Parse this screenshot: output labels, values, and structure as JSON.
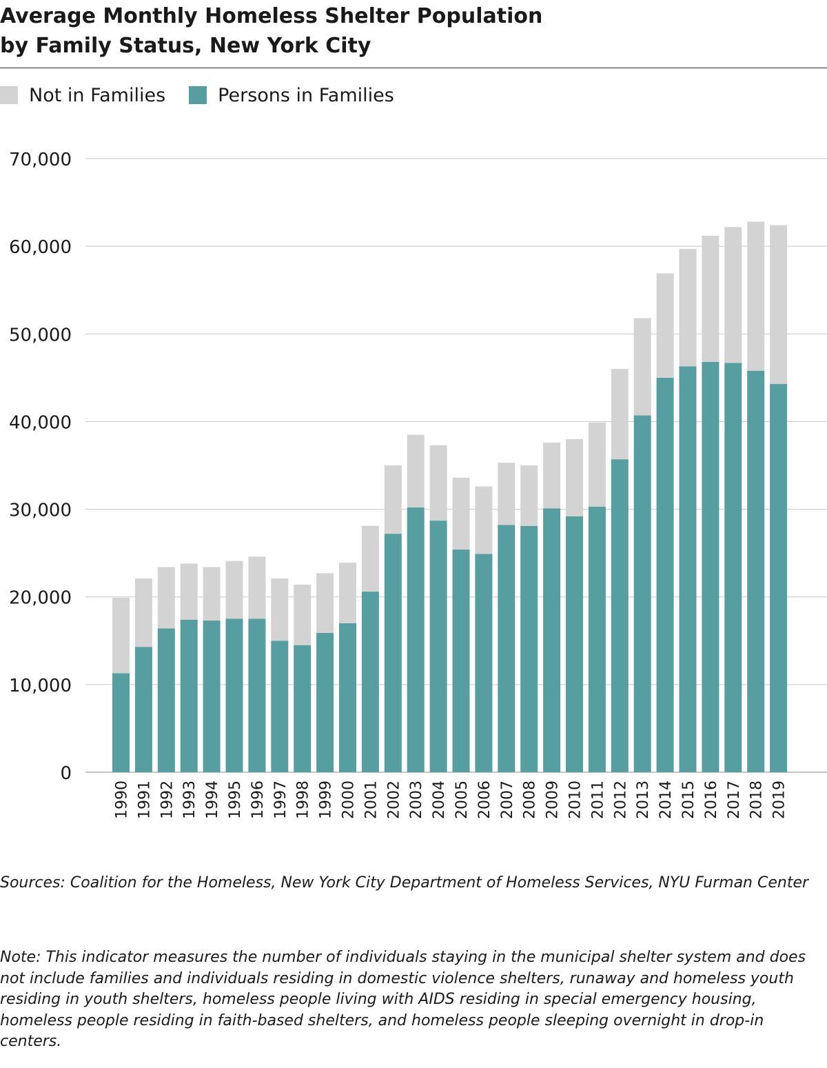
{
  "title_line1": "Average Monthly Homeless Shelter Population",
  "title_line2": "by Family Status, New York City",
  "legend": [
    {
      "label": "Not in Families",
      "color": "#d3d3d3"
    },
    {
      "label": "Persons in Families",
      "color": "#569e9f"
    }
  ],
  "chart_data": {
    "type": "bar",
    "stacked": true,
    "categories": [
      "1990",
      "1991",
      "1992",
      "1993",
      "1994",
      "1995",
      "1996",
      "1997",
      "1998",
      "1999",
      "2000",
      "2001",
      "2002",
      "2003",
      "2004",
      "2005",
      "2006",
      "2007",
      "2008",
      "2009",
      "2010",
      "2011",
      "2012",
      "2013",
      "2014",
      "2015",
      "2016",
      "2017",
      "2018",
      "2019"
    ],
    "series": [
      {
        "name": "Persons in Families",
        "color": "#569e9f",
        "values": [
          11300,
          14300,
          16400,
          17400,
          17300,
          17500,
          17500,
          15000,
          14500,
          15900,
          17000,
          20600,
          27200,
          30200,
          28700,
          25400,
          24900,
          28200,
          28100,
          30100,
          29200,
          30300,
          35700,
          40700,
          45000,
          46300,
          46800,
          46700,
          45800,
          44300
        ]
      },
      {
        "name": "Not in Families",
        "color": "#d3d3d3",
        "values": [
          8600,
          7800,
          7000,
          6400,
          6100,
          6600,
          7100,
          7100,
          6900,
          6800,
          6900,
          7500,
          7800,
          8300,
          8600,
          8200,
          7700,
          7100,
          6900,
          7500,
          8800,
          9600,
          10300,
          11100,
          11900,
          13400,
          14400,
          15500,
          17000,
          18100
        ]
      }
    ],
    "ylim": [
      0,
      70000
    ],
    "yticks": [
      0,
      10000,
      20000,
      30000,
      40000,
      50000,
      60000,
      70000
    ],
    "ytick_labels": [
      "0",
      "10,000",
      "20,000",
      "30,000",
      "40,000",
      "50,000",
      "60,000",
      "70,000"
    ],
    "grid": true,
    "legend_position": "top-left"
  },
  "sources": "Sources: Coalition for the Homeless, New York City Department of Homeless Services, NYU Furman Center",
  "note": "Note: This indicator measures the number of individuals staying in the municipal shelter system and does not include families and individuals residing in domestic violence shelters, runaway and homeless youth residing in youth shelters, homeless people living with AIDS residing in special emergency housing, homeless people residing in faith-based shelters, and homeless people sleeping overnight in drop-in centers."
}
